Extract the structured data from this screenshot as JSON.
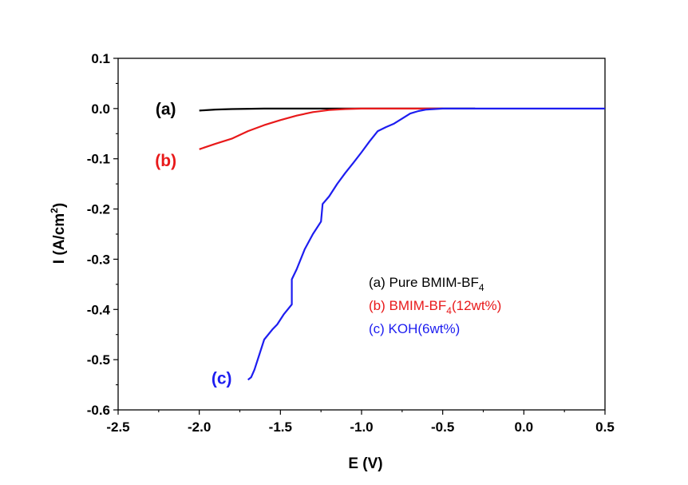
{
  "chart_data": {
    "type": "line",
    "xlabel": "E (V)",
    "ylabel": "I (A/cm2)",
    "xlim": [
      -2.5,
      0.5
    ],
    "ylim": [
      -0.6,
      0.1
    ],
    "x_ticks": [
      "-2.5",
      "-2.0",
      "-1.5",
      "-1.0",
      "-0.5",
      "0.0",
      "0.5"
    ],
    "y_ticks": [
      "0.1",
      "0.0",
      "-0.1",
      "-0.2",
      "-0.3",
      "-0.4",
      "-0.5",
      "-0.6"
    ],
    "grid": false,
    "legend_position": "center-right",
    "series": [
      {
        "name": "(a) Pure BMIM-BF4",
        "tag": "(a)",
        "color": "#000000",
        "points": [
          [
            -2.0,
            -0.004
          ],
          [
            -1.9,
            -0.002
          ],
          [
            -1.8,
            -0.001
          ],
          [
            -1.6,
            0.0
          ],
          [
            -1.2,
            0.0
          ],
          [
            -1.0,
            0.0
          ],
          [
            -0.3,
            0.0
          ]
        ]
      },
      {
        "name": "(b) BMIM-BF4(12wt%)",
        "tag": "(b)",
        "color": "#e8191a",
        "points": [
          [
            -2.0,
            -0.081
          ],
          [
            -1.9,
            -0.07
          ],
          [
            -1.8,
            -0.06
          ],
          [
            -1.7,
            -0.045
          ],
          [
            -1.6,
            -0.033
          ],
          [
            -1.5,
            -0.023
          ],
          [
            -1.4,
            -0.014
          ],
          [
            -1.3,
            -0.007
          ],
          [
            -1.2,
            -0.003
          ],
          [
            -1.1,
            -0.001
          ],
          [
            -1.0,
            0.0
          ],
          [
            -0.5,
            0.0
          ]
        ]
      },
      {
        "name": "(c) KOH(6wt%)",
        "tag": "(c)",
        "color": "#1d1df0",
        "points": [
          [
            -1.7,
            -0.54
          ],
          [
            -1.68,
            -0.535
          ],
          [
            -1.66,
            -0.52
          ],
          [
            -1.63,
            -0.49
          ],
          [
            -1.6,
            -0.46
          ],
          [
            -1.55,
            -0.44
          ],
          [
            -1.52,
            -0.43
          ],
          [
            -1.48,
            -0.41
          ],
          [
            -1.43,
            -0.39
          ],
          [
            -1.43,
            -0.34
          ],
          [
            -1.4,
            -0.32
          ],
          [
            -1.35,
            -0.28
          ],
          [
            -1.3,
            -0.25
          ],
          [
            -1.25,
            -0.225
          ],
          [
            -1.24,
            -0.19
          ],
          [
            -1.2,
            -0.175
          ],
          [
            -1.15,
            -0.15
          ],
          [
            -1.1,
            -0.128
          ],
          [
            -1.05,
            -0.108
          ],
          [
            -1.0,
            -0.087
          ],
          [
            -0.95,
            -0.065
          ],
          [
            -0.9,
            -0.045
          ],
          [
            -0.85,
            -0.037
          ],
          [
            -0.8,
            -0.03
          ],
          [
            -0.75,
            -0.02
          ],
          [
            -0.7,
            -0.01
          ],
          [
            -0.65,
            -0.005
          ],
          [
            -0.6,
            -0.002
          ],
          [
            -0.5,
            0.0
          ],
          [
            0.0,
            0.0
          ],
          [
            0.5,
            0.0
          ]
        ]
      }
    ]
  },
  "legend": {
    "a_prefix": "(a) Pure BMIM-BF",
    "a_sub": "4",
    "b_prefix": "(b) BMIM-BF",
    "b_sub": "4",
    "b_suffix": "(12wt%)",
    "c_label": "(c) KOH(6wt%)"
  },
  "axis_titles": {
    "x": "E (V)",
    "y_prefix": "I (A/cm",
    "y_sup": "2",
    "y_suffix": ")"
  }
}
